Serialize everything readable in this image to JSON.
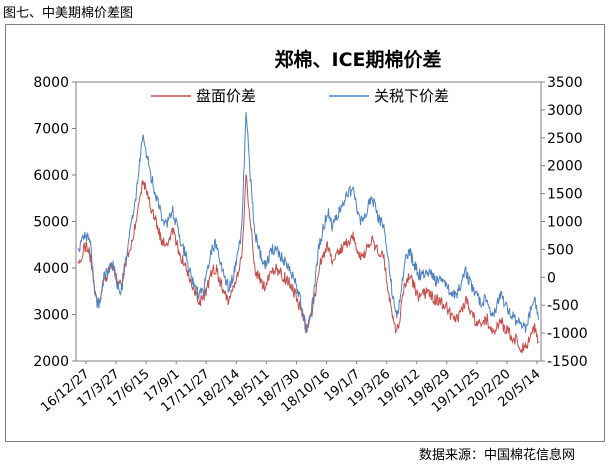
{
  "figure_caption": "图七、中美期棉价差图",
  "source_note": "数据来源：中国棉花信息网",
  "colors": {
    "series_left": "#c0504d",
    "series_right": "#4f81bd",
    "axis": "#808080"
  },
  "chart_data": {
    "type": "line",
    "title": "郑棉、ICE期棉价差",
    "legend_position": "top",
    "x_ticks": [
      "16/12/27",
      "17/3/27",
      "17/6/15",
      "17/9/1",
      "17/11/27",
      "18/2/14",
      "18/5/11",
      "18/7/30",
      "18/10/16",
      "19/1/7",
      "19/3/26",
      "19/6/12",
      "19/8/29",
      "19/11/25",
      "20/2/20",
      "20/5/14"
    ],
    "y_left": {
      "ylim": [
        2000,
        8000
      ],
      "ticks": [
        "8000",
        "7000",
        "6000",
        "5000",
        "4000",
        "3000",
        "2000"
      ]
    },
    "y_right": {
      "ylim": [
        -1500,
        3500
      ],
      "ticks": [
        "3500",
        "3000",
        "2500",
        "2000",
        "1500",
        "1000",
        "500",
        "0",
        "-500",
        "-1000",
        "-1500"
      ]
    },
    "series": [
      {
        "name": "盘面价差",
        "axis": "left",
        "values": [
          4000,
          4350,
          4500,
          4200,
          3400,
          3300,
          3700,
          3900,
          4000,
          3700,
          3600,
          4100,
          4400,
          4800,
          5300,
          5900,
          5600,
          5300,
          5000,
          4700,
          4500,
          4600,
          4800,
          4500,
          4200,
          4000,
          3700,
          3500,
          3300,
          3300,
          3600,
          3900,
          4000,
          3700,
          3500,
          3300,
          3500,
          3900,
          4200,
          6000,
          5000,
          4000,
          3800,
          3600,
          3700,
          3900,
          4000,
          3900,
          3800,
          3700,
          3500,
          3300,
          3000,
          2700,
          2900,
          3400,
          4000,
          4300,
          4500,
          4200,
          4300,
          4400,
          4500,
          4600,
          4700,
          4300,
          4200,
          4400,
          4600,
          4500,
          4300,
          4200,
          3500,
          3000,
          2600,
          3100,
          3700,
          3800,
          3600,
          3400,
          3400,
          3500,
          3400,
          3300,
          3300,
          3200,
          3100,
          2900,
          2900,
          3100,
          3300,
          3100,
          2900,
          2800,
          2800,
          2900,
          2600,
          2700,
          2900,
          2700,
          2600,
          2500,
          2400,
          2300,
          2300,
          2600,
          2700,
          2400
        ]
      },
      {
        "name": "关税下价差",
        "axis": "right",
        "values": [
          450,
          650,
          750,
          500,
          -400,
          -500,
          0,
          150,
          250,
          -100,
          -300,
          300,
          800,
          1200,
          1800,
          2500,
          2200,
          1800,
          1500,
          1200,
          900,
          1000,
          1200,
          900,
          600,
          400,
          100,
          -200,
          -300,
          -300,
          100,
          500,
          600,
          300,
          0,
          -200,
          0,
          400,
          800,
          3000,
          1800,
          800,
          500,
          200,
          300,
          500,
          500,
          400,
          300,
          200,
          0,
          -250,
          -500,
          -950,
          -700,
          -100,
          600,
          900,
          1200,
          900,
          1100,
          1200,
          1400,
          1500,
          1600,
          1100,
          1000,
          1200,
          1400,
          1300,
          1000,
          900,
          300,
          -300,
          -750,
          -200,
          350,
          450,
          250,
          50,
          50,
          150,
          50,
          -50,
          -50,
          -100,
          -200,
          -350,
          -300,
          -100,
          100,
          -100,
          -300,
          -400,
          -450,
          -350,
          -700,
          -550,
          -300,
          -500,
          -600,
          -700,
          -800,
          -850,
          -900,
          -600,
          -450,
          -750
        ]
      }
    ]
  }
}
